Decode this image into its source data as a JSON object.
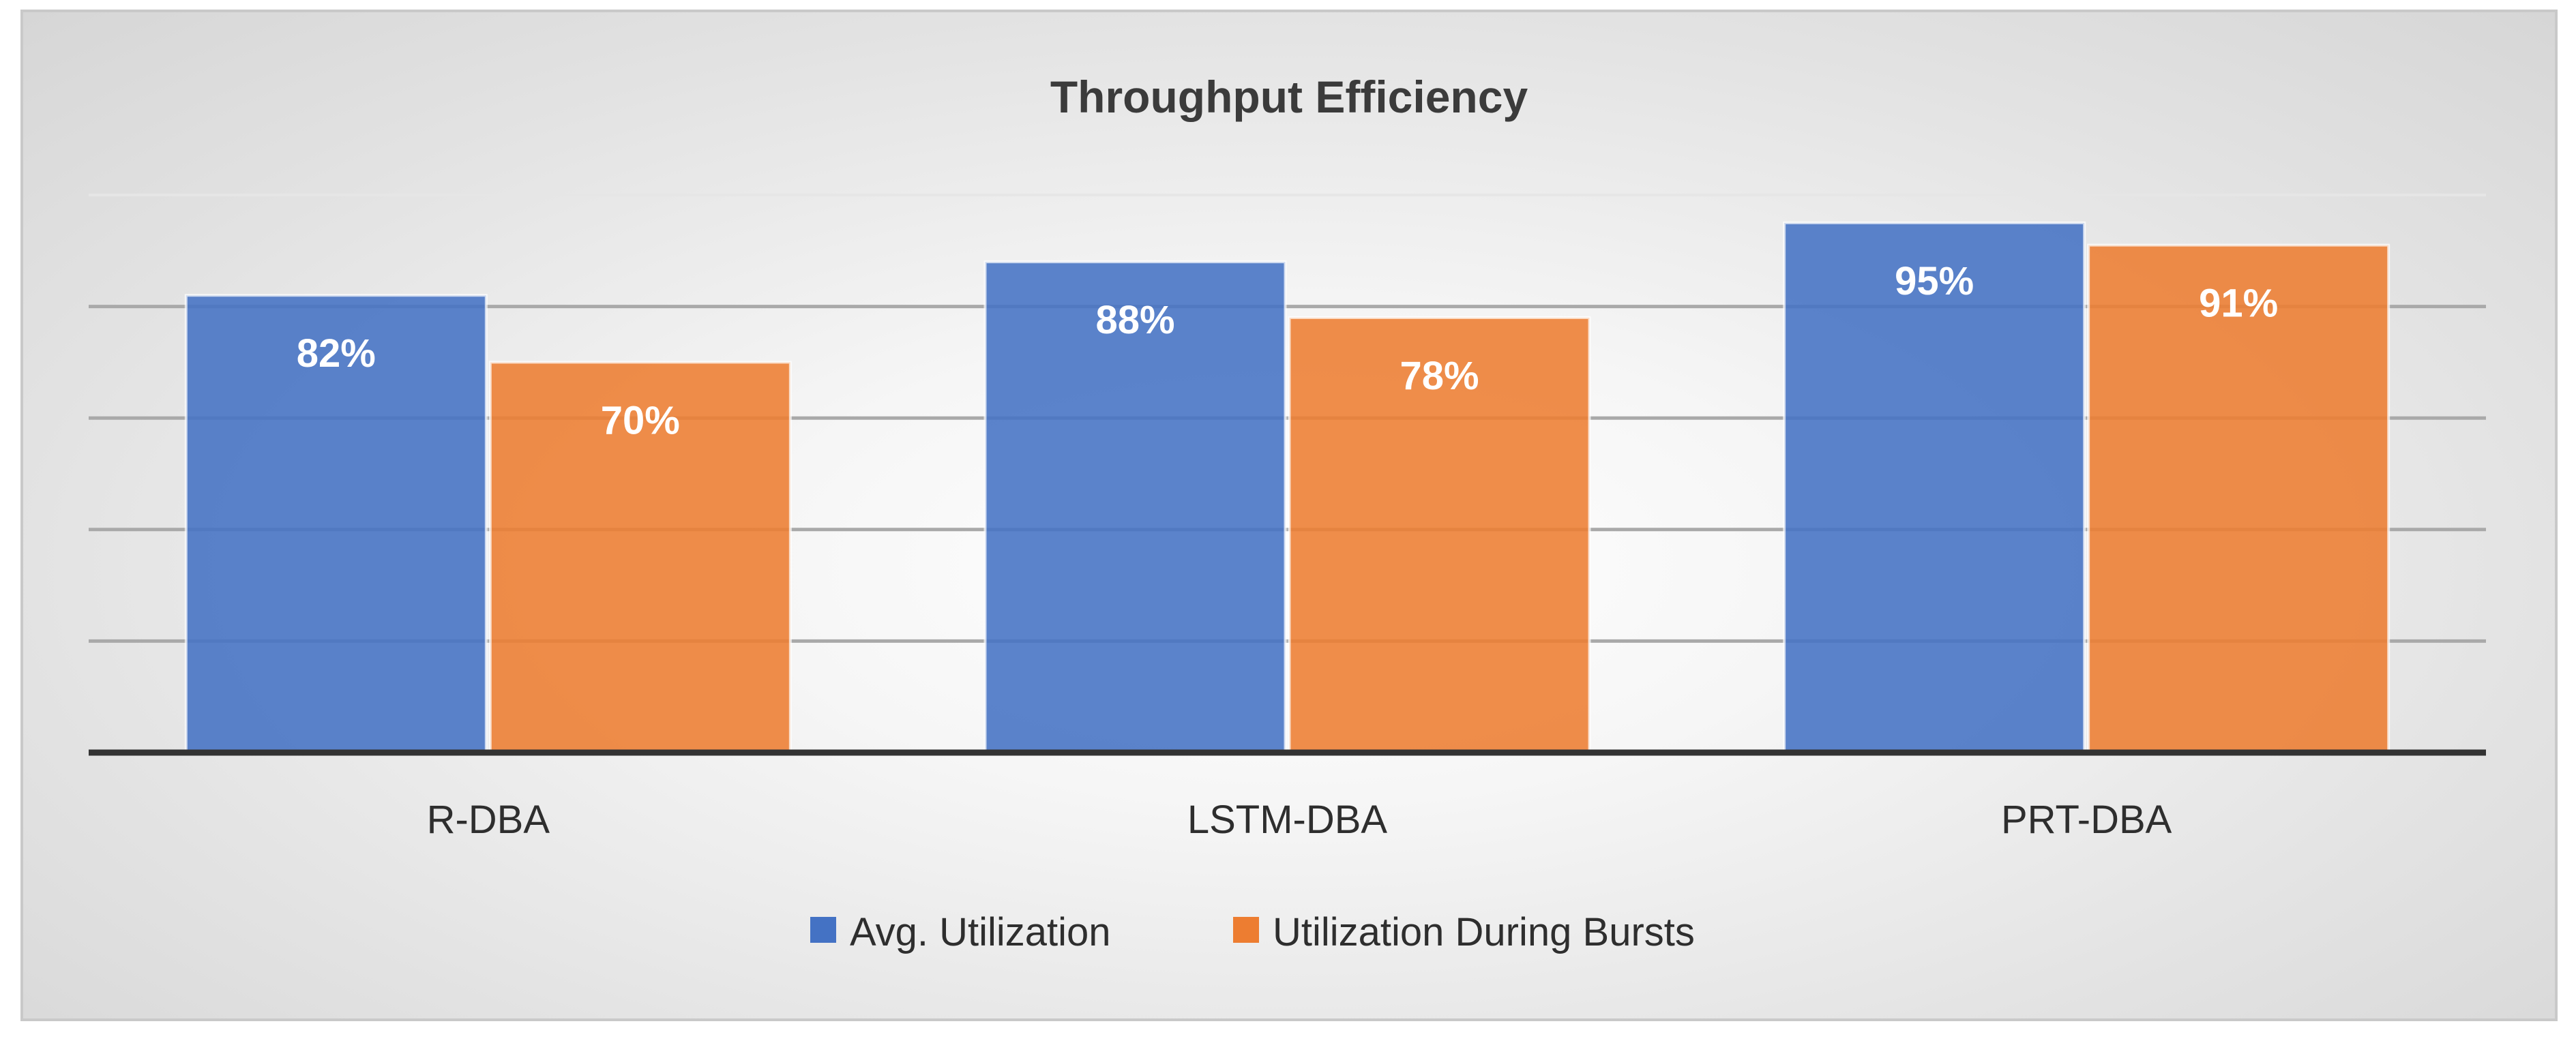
{
  "chart_data": {
    "type": "bar",
    "title": "Throughput Efficiency",
    "categories": [
      "R-DBA",
      "LSTM-DBA",
      "PRT-DBA"
    ],
    "series": [
      {
        "name": "Avg. Utilization",
        "values": [
          82,
          88,
          95
        ],
        "labels": [
          "82%",
          "88%",
          "95%"
        ],
        "color": "#4472c4"
      },
      {
        "name": "Utilization During Bursts",
        "values": [
          70,
          78,
          91
        ],
        "labels": [
          "70%",
          "78%",
          "91%"
        ],
        "color": "#ed7d31"
      }
    ],
    "ylim": [
      0,
      100
    ],
    "gridlines": [
      20,
      40,
      60,
      80,
      100
    ],
    "grid": true,
    "legend": "bottom",
    "xlabel": "",
    "ylabel": ""
  }
}
